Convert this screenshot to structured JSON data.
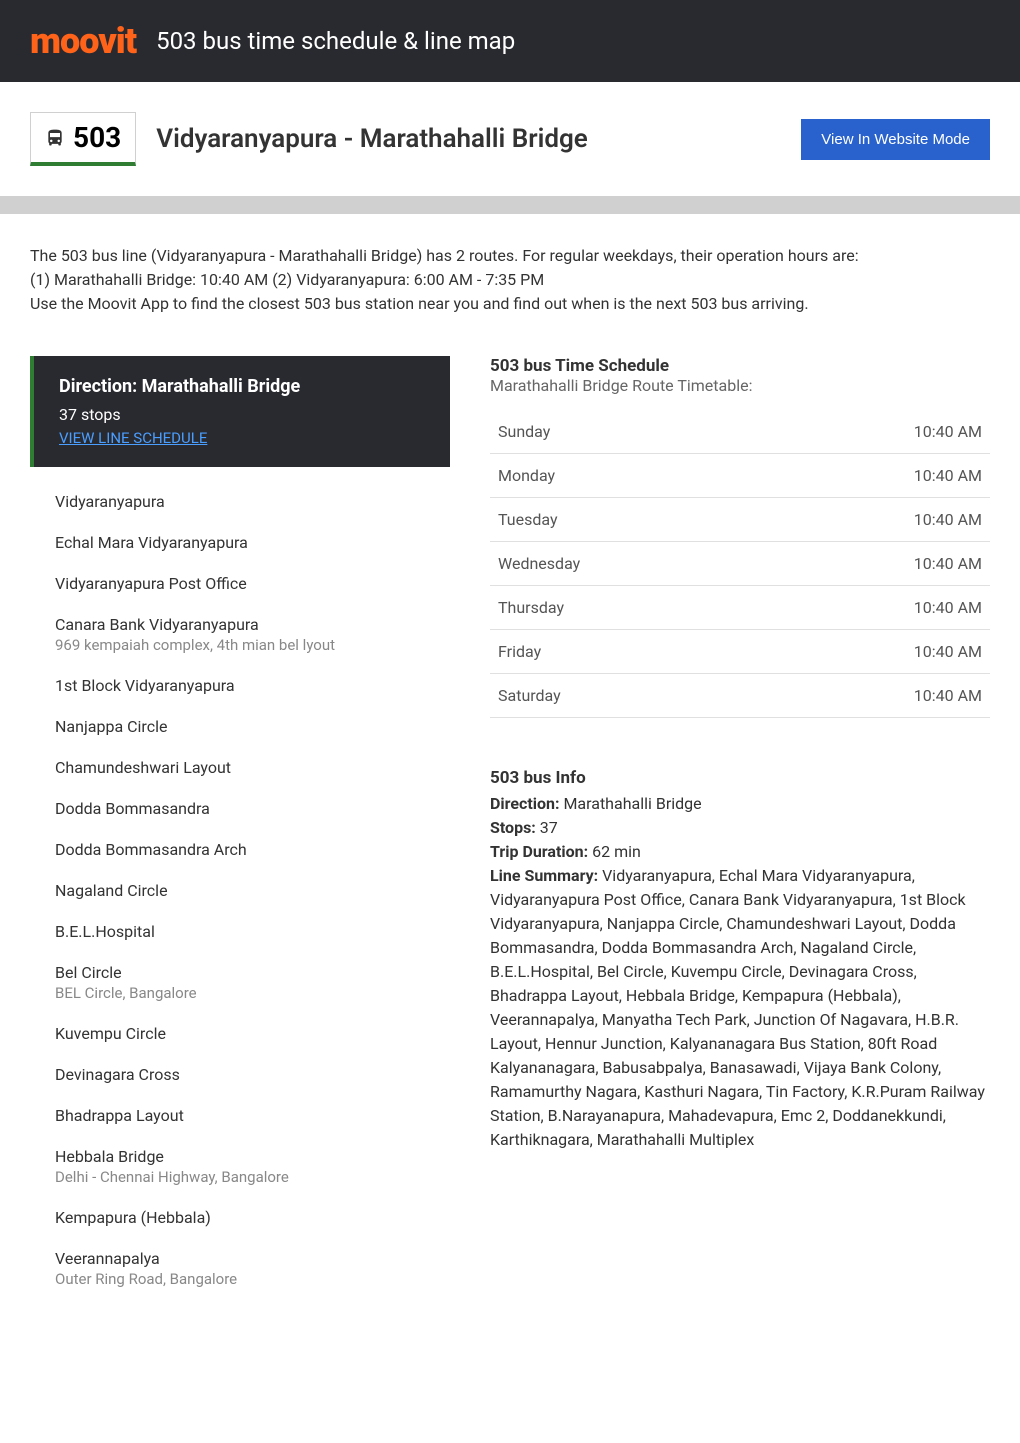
{
  "brand": {
    "logo_text": "moovit",
    "logo_color": "#ff6319"
  },
  "header": {
    "title": "503 bus time schedule & line map",
    "bg_color": "#292a30",
    "text_color": "#ffffff"
  },
  "subheader": {
    "route_number": "503",
    "route_name": "Vidyaranyapura - Marathahalli Bridge",
    "website_button": "View In Website Mode",
    "button_bg": "#2962cc",
    "accent_color": "#2e7d32"
  },
  "intro": {
    "line1": "The 503 bus line (Vidyaranyapura - Marathahalli Bridge) has 2 routes. For regular weekdays, their operation hours are:",
    "line2": "(1) Marathahalli Bridge: 10:40 AM (2) Vidyaranyapura: 6:00 AM - 7:35 PM",
    "line3": "Use the Moovit App to find the closest 503 bus station near you and find out when is the next 503 bus arriving."
  },
  "direction": {
    "title": "Direction: Marathahalli Bridge",
    "stops_count": "37 stops",
    "schedule_link": "VIEW LINE SCHEDULE"
  },
  "stops": [
    {
      "name": "Vidyaranyapura",
      "sub": ""
    },
    {
      "name": "Echal Mara Vidyaranyapura",
      "sub": ""
    },
    {
      "name": "Vidyaranyapura Post Office",
      "sub": ""
    },
    {
      "name": "Canara Bank Vidyaranyapura",
      "sub": "969 kempaiah complex, 4th mian bel lyout"
    },
    {
      "name": "1st Block Vidyaranyapura",
      "sub": ""
    },
    {
      "name": "Nanjappa Circle",
      "sub": ""
    },
    {
      "name": "Chamundeshwari Layout",
      "sub": ""
    },
    {
      "name": "Dodda Bommasandra",
      "sub": ""
    },
    {
      "name": "Dodda Bommasandra Arch",
      "sub": ""
    },
    {
      "name": "Nagaland Circle",
      "sub": ""
    },
    {
      "name": "B.E.L.Hospital",
      "sub": ""
    },
    {
      "name": "Bel Circle",
      "sub": "BEL Circle, Bangalore"
    },
    {
      "name": "Kuvempu Circle",
      "sub": ""
    },
    {
      "name": "Devinagara Cross",
      "sub": ""
    },
    {
      "name": "Bhadrappa Layout",
      "sub": ""
    },
    {
      "name": "Hebbala Bridge",
      "sub": "Delhi - Chennai Highway, Bangalore"
    },
    {
      "name": "Kempapura (Hebbala)",
      "sub": ""
    },
    {
      "name": "Veerannapalya",
      "sub": "Outer Ring Road, Bangalore"
    }
  ],
  "schedule": {
    "title": "503 bus Time Schedule",
    "subtitle": "Marathahalli Bridge Route Timetable:",
    "rows": [
      {
        "day": "Sunday",
        "time": "10:40 AM"
      },
      {
        "day": "Monday",
        "time": "10:40 AM"
      },
      {
        "day": "Tuesday",
        "time": "10:40 AM"
      },
      {
        "day": "Wednesday",
        "time": "10:40 AM"
      },
      {
        "day": "Thursday",
        "time": "10:40 AM"
      },
      {
        "day": "Friday",
        "time": "10:40 AM"
      },
      {
        "day": "Saturday",
        "time": "10:40 AM"
      }
    ]
  },
  "info": {
    "title": "503 bus Info",
    "direction_label": "Direction:",
    "direction_value": " Marathahalli Bridge",
    "stops_label": "Stops:",
    "stops_value": " 37",
    "duration_label": "Trip Duration:",
    "duration_value": " 62 min",
    "summary_label": "Line Summary:",
    "summary_value": " Vidyaranyapura, Echal Mara Vidyaranyapura, Vidyaranyapura Post Office, Canara Bank Vidyaranyapura, 1st Block Vidyaranyapura, Nanjappa Circle, Chamundeshwari Layout, Dodda Bommasandra, Dodda Bommasandra Arch, Nagaland Circle, B.E.L.Hospital, Bel Circle, Kuvempu Circle, Devinagara Cross, Bhadrappa Layout, Hebbala Bridge, Kempapura (Hebbala), Veerannapalya, Manyatha Tech Park, Junction Of Nagavara, H.B.R. Layout, Hennur Junction, Kalyananagara Bus Station, 80ft Road Kalyananagara, Babusabpalya, Banasawadi, Vijaya Bank Colony, Ramamurthy Nagara, Kasthuri Nagara, Tin Factory, K.R.Puram Railway Station, B.Narayanapura, Mahadevapura, Emc 2, Doddanekkundi, Karthiknagara, Marathahalli Multiplex"
  }
}
